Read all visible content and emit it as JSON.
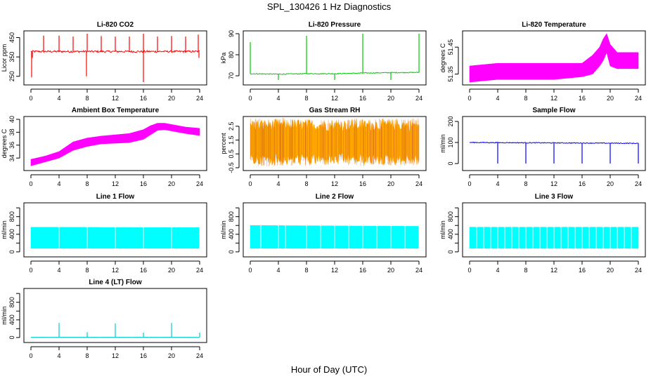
{
  "figure": {
    "title": "SPL_130426  1 Hz Diagnostics",
    "xlabel": "Hour of Day (UTC)"
  },
  "chart_data": [
    {
      "type": "line",
      "title": "Li-820 CO2",
      "ylabel": "Licor ppm",
      "color": "#ff0000",
      "xlim": [
        0,
        24
      ],
      "ylim": [
        220,
        470
      ],
      "xticks": [
        0,
        4,
        8,
        12,
        16,
        20,
        24
      ],
      "yticks": [
        250,
        350,
        450
      ],
      "ytick_labels": [
        "250",
        "350",
        "450"
      ],
      "baseline": {
        "x": [
          0,
          24
        ],
        "y": [
          378,
          378
        ]
      },
      "noise": 5,
      "spikes": [
        {
          "x": 0.1,
          "to": 245
        },
        {
          "x": 0.2,
          "to": 345
        },
        {
          "x": 1.8,
          "to": 460
        },
        {
          "x": 4,
          "to": 460
        },
        {
          "x": 6,
          "to": 455
        },
        {
          "x": 8,
          "to": 470
        },
        {
          "x": 7.9,
          "to": 250
        },
        {
          "x": 10,
          "to": 458
        },
        {
          "x": 12,
          "to": 455
        },
        {
          "x": 14,
          "to": 455
        },
        {
          "x": 16,
          "to": 470
        },
        {
          "x": 16,
          "to": 220
        },
        {
          "x": 18,
          "to": 455
        },
        {
          "x": 20,
          "to": 458
        },
        {
          "x": 22,
          "to": 455
        },
        {
          "x": 23.8,
          "to": 465
        },
        {
          "x": 23.9,
          "to": 345
        }
      ]
    },
    {
      "type": "line",
      "title": "Li-820 Pressure",
      "ylabel": "kPa",
      "color": "#00cc00",
      "xlim": [
        0,
        24
      ],
      "ylim": [
        67,
        90
      ],
      "xticks": [
        0,
        4,
        8,
        12,
        16,
        20,
        24
      ],
      "yticks": [
        70,
        80,
        90
      ],
      "ytick_labels": [
        "70",
        "80",
        "90"
      ],
      "baseline": {
        "x": [
          0,
          4,
          8,
          12,
          16,
          20,
          24
        ],
        "y": [
          71,
          70.8,
          71,
          71,
          71.3,
          71.5,
          71.6
        ]
      },
      "noise": 0.2,
      "spikes": [
        {
          "x": 0,
          "to": 86
        },
        {
          "x": 4,
          "to": 68
        },
        {
          "x": 8,
          "to": 89
        },
        {
          "x": 12,
          "to": 68
        },
        {
          "x": 16,
          "to": 90
        },
        {
          "x": 20,
          "to": 68
        },
        {
          "x": 24,
          "to": 90
        }
      ]
    },
    {
      "type": "band",
      "title": "Li-820 Temperature",
      "ylabel": "degrees C",
      "color": "#ff00ff",
      "xlim": [
        0,
        24
      ],
      "ylim": [
        51.32,
        51.5
      ],
      "xticks": [
        0,
        4,
        8,
        12,
        16,
        20,
        24
      ],
      "yticks": [
        51.35,
        51.45
      ],
      "ytick_labels": [
        "51.35",
        "51.45"
      ],
      "band": {
        "x": [
          0,
          4,
          8,
          12,
          16,
          17.5,
          18.5,
          19,
          19.5,
          20,
          21,
          24
        ],
        "lo": [
          51.32,
          51.33,
          51.33,
          51.33,
          51.34,
          51.35,
          51.38,
          51.4,
          51.43,
          51.38,
          51.37,
          51.37
        ],
        "hi": [
          51.38,
          51.39,
          51.39,
          51.39,
          51.39,
          51.42,
          51.45,
          51.48,
          51.5,
          51.46,
          51.43,
          51.43
        ]
      }
    },
    {
      "type": "band",
      "title": "Ambient Box Temperature",
      "ylabel": "degrees C",
      "color": "#ff00ff",
      "xlim": [
        0,
        24
      ],
      "ylim": [
        32.5,
        40
      ],
      "xticks": [
        0,
        4,
        8,
        12,
        16,
        20,
        24
      ],
      "yticks": [
        34,
        36,
        38,
        40
      ],
      "ytick_labels": [
        "34",
        "36",
        "38",
        "40"
      ],
      "band": {
        "x": [
          0,
          2,
          4,
          6,
          8,
          10,
          12,
          14,
          16,
          17,
          18,
          19,
          20,
          22,
          24
        ],
        "lo": [
          32.8,
          33.4,
          34,
          35.2,
          35.8,
          36.2,
          36.3,
          36.4,
          36.9,
          37.6,
          38.3,
          38.4,
          38.2,
          37.8,
          37.5
        ],
        "hi": [
          33.8,
          34.3,
          35,
          36.5,
          37.1,
          37.4,
          37.6,
          37.8,
          38.4,
          39,
          39.4,
          39.4,
          39.2,
          38.8,
          38.6
        ]
      }
    },
    {
      "type": "band",
      "title": "Gas Stream RH",
      "ylabel": "percent",
      "color": "#ffa500",
      "xlim": [
        0,
        24
      ],
      "ylim": [
        -0.5,
        3
      ],
      "xticks": [
        0,
        4,
        8,
        12,
        16,
        20,
        24
      ],
      "yticks": [
        -0.5,
        0.5,
        1.5,
        2.5
      ],
      "ytick_labels": [
        "-0.5",
        "0.5",
        "1.5",
        "2.5"
      ],
      "band": {
        "x": [
          0,
          24
        ],
        "lo": [
          0.3,
          0.3
        ],
        "hi": [
          2.4,
          2.4
        ]
      },
      "spiky": true
    },
    {
      "type": "line",
      "title": "Sample Flow",
      "ylabel": "ml/min",
      "color": "#0000ff",
      "xlim": [
        0,
        24
      ],
      "ylim": [
        -20,
        210
      ],
      "xticks": [
        0,
        4,
        8,
        12,
        16,
        20,
        24
      ],
      "yticks": [
        0,
        100,
        200
      ],
      "ytick_labels": [
        "0",
        "100",
        "200"
      ],
      "baseline": {
        "x": [
          0,
          24
        ],
        "y": [
          100,
          96
        ]
      },
      "noise": 2,
      "spikes": [
        {
          "x": 4,
          "to": 0
        },
        {
          "x": 8,
          "to": 0
        },
        {
          "x": 12,
          "to": 0
        },
        {
          "x": 16,
          "to": 0
        },
        {
          "x": 20,
          "to": 0
        },
        {
          "x": 24,
          "to": 0
        }
      ]
    },
    {
      "type": "band",
      "title": "Line 1 Flow",
      "ylabel": "ml/min",
      "color": "#00ffff",
      "xlim": [
        0,
        24
      ],
      "ylim": [
        -50,
        1050
      ],
      "xticks": [
        0,
        4,
        8,
        12,
        16,
        20,
        24
      ],
      "yticks": [
        0,
        200,
        400,
        600,
        800,
        1000
      ],
      "ytick_labels": [
        "0",
        "400",
        "800"
      ],
      "band": {
        "x": [
          0,
          24
        ],
        "lo": [
          80,
          80
        ],
        "hi": [
          560,
          550
        ]
      },
      "gaps": [
        4,
        8,
        12,
        16,
        20,
        24
      ]
    },
    {
      "type": "band",
      "title": "Line 2 Flow",
      "ylabel": "ml/min",
      "color": "#00ffff",
      "xlim": [
        0,
        24
      ],
      "ylim": [
        -50,
        1050
      ],
      "xticks": [
        0,
        4,
        8,
        12,
        16,
        20,
        24
      ],
      "yticks": [
        0,
        200,
        400,
        600,
        800,
        1000
      ],
      "ytick_labels": [
        "0",
        "400",
        "800"
      ],
      "band": {
        "x": [
          0,
          24
        ],
        "lo": [
          80,
          80
        ],
        "hi": [
          600,
          580
        ]
      },
      "gaps": [
        1.5,
        4,
        5,
        8,
        10,
        12,
        14,
        16,
        18,
        20,
        22,
        24
      ]
    },
    {
      "type": "band",
      "title": "Line 3 Flow",
      "ylabel": "ml/min",
      "color": "#00ffff",
      "xlim": [
        0,
        24
      ],
      "ylim": [
        -50,
        1050
      ],
      "xticks": [
        0,
        4,
        8,
        12,
        16,
        20,
        24
      ],
      "yticks": [
        0,
        200,
        400,
        600,
        800,
        1000
      ],
      "ytick_labels": [
        "0",
        "400",
        "800"
      ],
      "band": {
        "x": [
          0,
          24
        ],
        "lo": [
          80,
          80
        ],
        "hi": [
          560,
          560
        ]
      },
      "gaps": [
        1,
        2,
        3,
        4,
        5,
        6,
        7,
        8,
        9,
        10,
        11,
        12,
        13,
        14,
        15,
        16,
        17,
        18,
        19,
        20,
        21,
        22,
        23
      ]
    },
    {
      "type": "line",
      "title": "Line 4 (LT) Flow",
      "ylabel": "ml/min",
      "color": "#00cccc",
      "xlim": [
        0,
        24
      ],
      "ylim": [
        -50,
        1050
      ],
      "xticks": [
        0,
        4,
        8,
        12,
        16,
        20,
        24
      ],
      "yticks": [
        0,
        200,
        400,
        600,
        800,
        1000
      ],
      "ytick_labels": [
        "0",
        "400",
        "800"
      ],
      "baseline": {
        "x": [
          0,
          24
        ],
        "y": [
          5,
          5
        ]
      },
      "noise": 2,
      "spikes": [
        {
          "x": 4,
          "to": 330
        },
        {
          "x": 8,
          "to": 120
        },
        {
          "x": 12,
          "to": 320
        },
        {
          "x": 16,
          "to": 110
        },
        {
          "x": 20,
          "to": 330
        },
        {
          "x": 24,
          "to": 110
        }
      ]
    }
  ]
}
